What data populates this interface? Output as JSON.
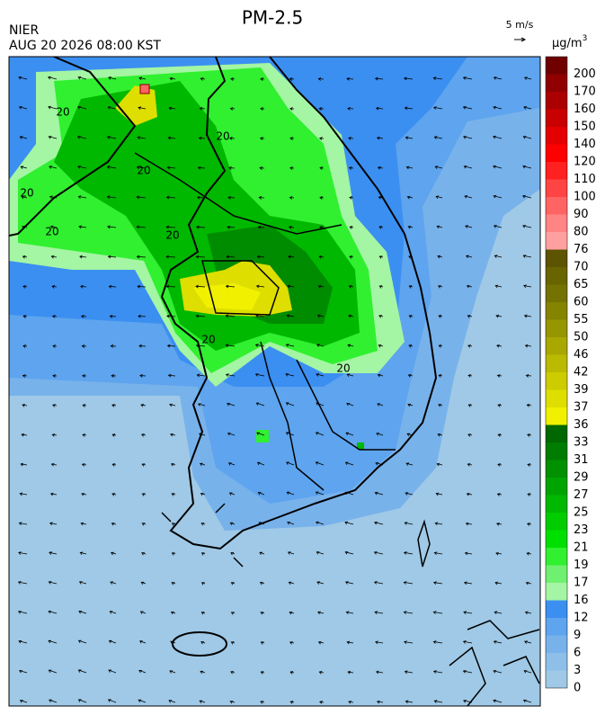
{
  "header": {
    "title": "PM-2.5",
    "agency": "NIER",
    "datetime": "AUG 20 2026 08:00 KST",
    "wind_scale": "5 m/s"
  },
  "colorbar": {
    "unit": "µg/m",
    "unit_superscript": "3",
    "levels": [
      {
        "value": 0,
        "color": "#9fc9e6"
      },
      {
        "value": 3,
        "color": "#8ebfe9"
      },
      {
        "value": 6,
        "color": "#78b2eb"
      },
      {
        "value": 9,
        "color": "#5ea4ee"
      },
      {
        "value": 12,
        "color": "#3b8ff1"
      },
      {
        "value": 16,
        "color": "#a4f5a4"
      },
      {
        "value": 17,
        "color": "#70f070"
      },
      {
        "value": 19,
        "color": "#30f030"
      },
      {
        "value": 21,
        "color": "#00e000"
      },
      {
        "value": 23,
        "color": "#00cc00"
      },
      {
        "value": 25,
        "color": "#00b800"
      },
      {
        "value": 27,
        "color": "#00a400"
      },
      {
        "value": 29,
        "color": "#009000"
      },
      {
        "value": 31,
        "color": "#007c00"
      },
      {
        "value": 33,
        "color": "#006800"
      },
      {
        "value": 36,
        "color": "#f0f000"
      },
      {
        "value": 37,
        "color": "#dede00"
      },
      {
        "value": 39,
        "color": "#cccc00"
      },
      {
        "value": 42,
        "color": "#baba00"
      },
      {
        "value": 46,
        "color": "#a8a800"
      },
      {
        "value": 50,
        "color": "#969600"
      },
      {
        "value": 55,
        "color": "#848400"
      },
      {
        "value": 60,
        "color": "#747200"
      },
      {
        "value": 65,
        "color": "#686400"
      },
      {
        "value": 70,
        "color": "#5c5400"
      },
      {
        "value": 76,
        "color": "#ffa0a0"
      },
      {
        "value": 80,
        "color": "#ff8484"
      },
      {
        "value": 90,
        "color": "#ff6464"
      },
      {
        "value": 100,
        "color": "#ff4444"
      },
      {
        "value": 110,
        "color": "#ff2020"
      },
      {
        "value": 120,
        "color": "#ff0000"
      },
      {
        "value": 140,
        "color": "#e40000"
      },
      {
        "value": 150,
        "color": "#c80000"
      },
      {
        "value": 160,
        "color": "#ac0000"
      },
      {
        "value": 170,
        "color": "#900000"
      },
      {
        "value": 200,
        "color": "#700000"
      }
    ],
    "top_color": "#600000"
  },
  "contour_labels": [
    "20",
    "20",
    "20",
    "20",
    "20",
    "20",
    "20",
    "20"
  ]
}
